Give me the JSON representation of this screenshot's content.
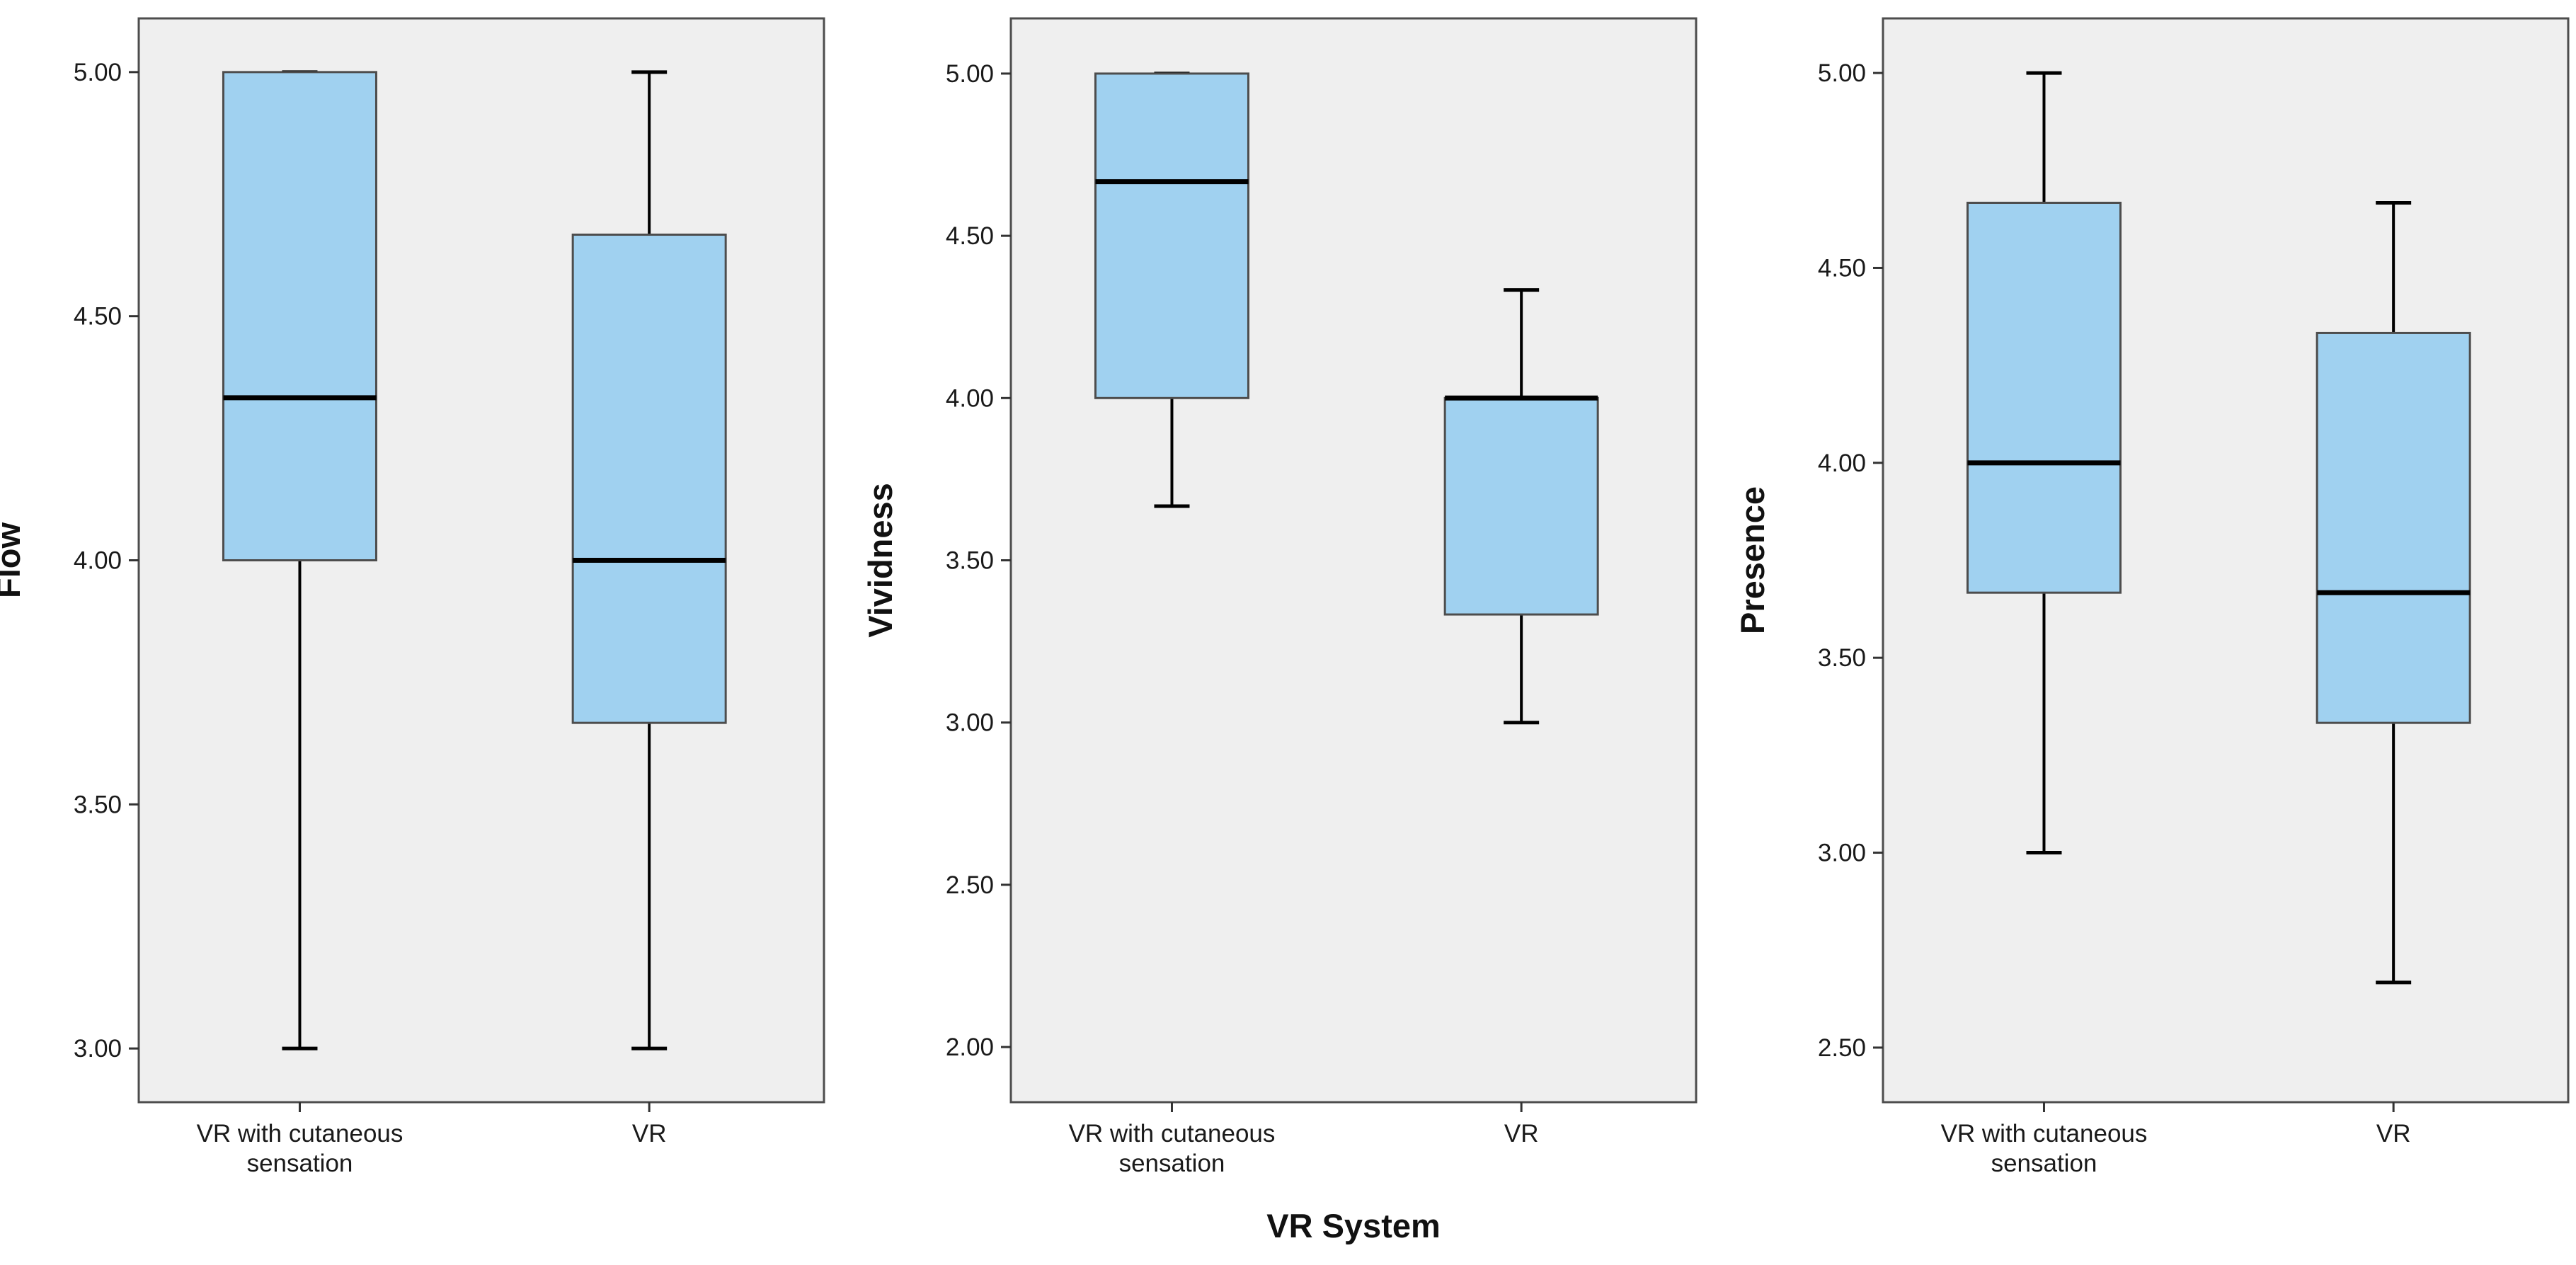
{
  "chart_data": {
    "type": "boxplot",
    "shared_xlabel": "VR System",
    "panels": [
      {
        "ylabel": "Flow",
        "ylim": [
          2.89,
          5.11
        ],
        "yticks": [
          3.0,
          3.5,
          4.0,
          4.5,
          5.0
        ],
        "ytick_labels": [
          "3.00",
          "3.50",
          "4.00",
          "4.50",
          "5.00"
        ],
        "categories": [
          {
            "lines": [
              "VR with cutaneous",
              "sensation"
            ]
          },
          {
            "lines": [
              "VR"
            ]
          }
        ],
        "boxes": [
          {
            "min": 3.0,
            "q1": 4.0,
            "median": 4.333,
            "q3": 5.0,
            "max": 5.0
          },
          {
            "min": 3.0,
            "q1": 3.667,
            "median": 4.0,
            "q3": 4.667,
            "max": 5.0
          }
        ]
      },
      {
        "ylabel": "Vividness",
        "ylim": [
          1.83,
          5.17
        ],
        "yticks": [
          2.0,
          2.5,
          3.0,
          3.5,
          4.0,
          4.5,
          5.0
        ],
        "ytick_labels": [
          "2.00",
          "2.50",
          "3.00",
          "3.50",
          "4.00",
          "4.50",
          "5.00"
        ],
        "categories": [
          {
            "lines": [
              "VR with cutaneous",
              "sensation"
            ]
          },
          {
            "lines": [
              "VR"
            ]
          }
        ],
        "boxes": [
          {
            "min": 3.667,
            "q1": 4.0,
            "median": 4.667,
            "q3": 5.0,
            "max": 5.0
          },
          {
            "min": 3.0,
            "q1": 3.333,
            "median": 4.0,
            "q3": 4.0,
            "max": 4.333
          }
        ]
      },
      {
        "ylabel": "Presence",
        "ylim": [
          2.36,
          5.14
        ],
        "yticks": [
          2.5,
          3.0,
          3.5,
          4.0,
          4.5,
          5.0
        ],
        "ytick_labels": [
          "2.50",
          "3.00",
          "3.50",
          "4.00",
          "4.50",
          "5.00"
        ],
        "categories": [
          {
            "lines": [
              "VR with cutaneous",
              "sensation"
            ]
          },
          {
            "lines": [
              "VR"
            ]
          }
        ],
        "boxes": [
          {
            "min": 3.0,
            "q1": 3.667,
            "median": 4.0,
            "q3": 4.667,
            "max": 5.0
          },
          {
            "min": 2.667,
            "q1": 3.333,
            "median": 3.667,
            "q3": 4.333,
            "max": 4.667
          }
        ]
      }
    ],
    "colors": {
      "box_fill": "#a0d1f0",
      "box_stroke": "#4d4d4d",
      "median": "#000000",
      "whisker": "#000000",
      "plot_background": "#efefef",
      "frame": "#4d4d4d"
    }
  }
}
